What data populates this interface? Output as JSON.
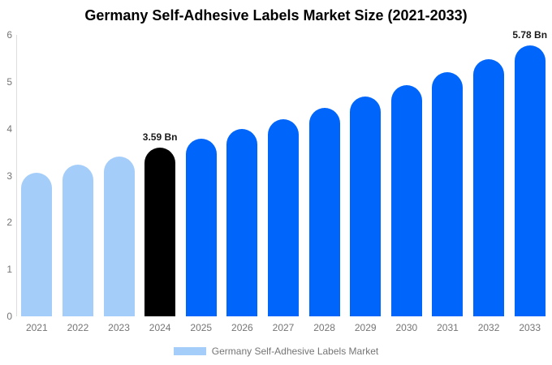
{
  "chart_data": {
    "type": "bar",
    "title": "Germany Self-Adhesive Labels Market Size (2021-2033)",
    "categories": [
      "2021",
      "2022",
      "2023",
      "2024",
      "2025",
      "2026",
      "2027",
      "2028",
      "2029",
      "2030",
      "2031",
      "2032",
      "2033"
    ],
    "values": [
      3.06,
      3.23,
      3.4,
      3.59,
      3.78,
      3.99,
      4.21,
      4.44,
      4.68,
      4.93,
      5.2,
      5.48,
      5.78
    ],
    "unit": "Bn",
    "bar_colors": [
      "#a5cdfa",
      "#a5cdfa",
      "#a5cdfa",
      "#000000",
      "#0066fb",
      "#0066fb",
      "#0066fb",
      "#0066fb",
      "#0066fb",
      "#0066fb",
      "#0066fb",
      "#0066fb",
      "#0066fb"
    ],
    "annotations": [
      {
        "category": "2024",
        "label": "3.59 Bn"
      },
      {
        "category": "2033",
        "label": "5.78 Bn"
      }
    ],
    "xlabel": "",
    "ylabel": "",
    "ylim": [
      0,
      6
    ],
    "yticks": [
      0,
      1,
      2,
      3,
      4,
      5,
      6
    ],
    "grid": false,
    "legend": {
      "position": "bottom",
      "entries": [
        {
          "label": "Germany Self-Adhesive Labels Market",
          "color": "#a5cdfa"
        }
      ]
    }
  },
  "colors": {
    "background": "#ffffff",
    "title_text": "#000000",
    "axis_line": "#dddddd",
    "axis_label_text": "#757575",
    "annotation_text": "#1a1a1a",
    "past_bars": "#a5cdfa",
    "base_year_bar": "#000000",
    "forecast_bars": "#0066fb"
  }
}
